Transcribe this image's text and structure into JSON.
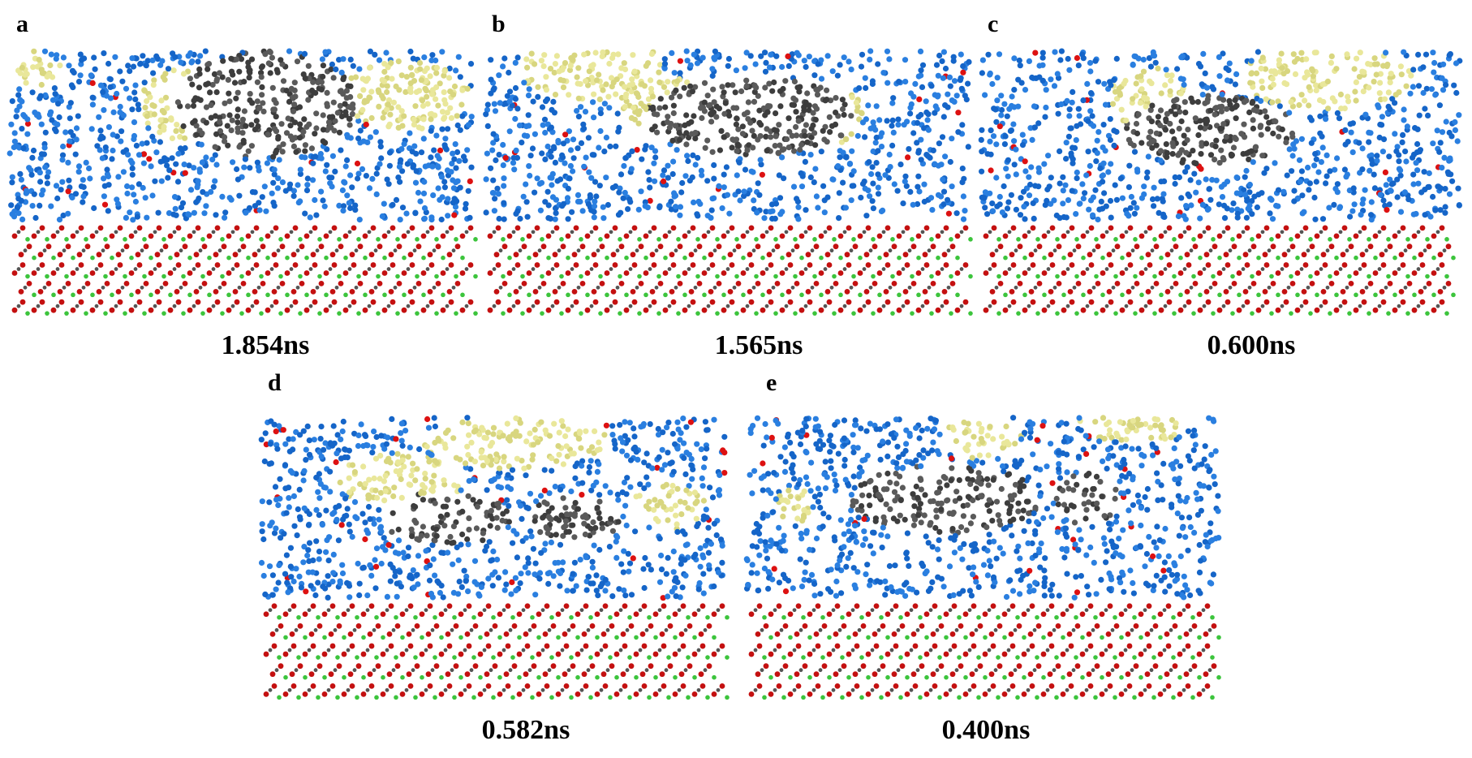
{
  "panels": [
    {
      "label": "a",
      "time": "1.854ns"
    },
    {
      "label": "b",
      "time": "1.565ns"
    },
    {
      "label": "c",
      "time": "0.600ns"
    },
    {
      "label": "d",
      "time": "0.582ns"
    },
    {
      "label": "e",
      "time": "0.400ns"
    }
  ]
}
